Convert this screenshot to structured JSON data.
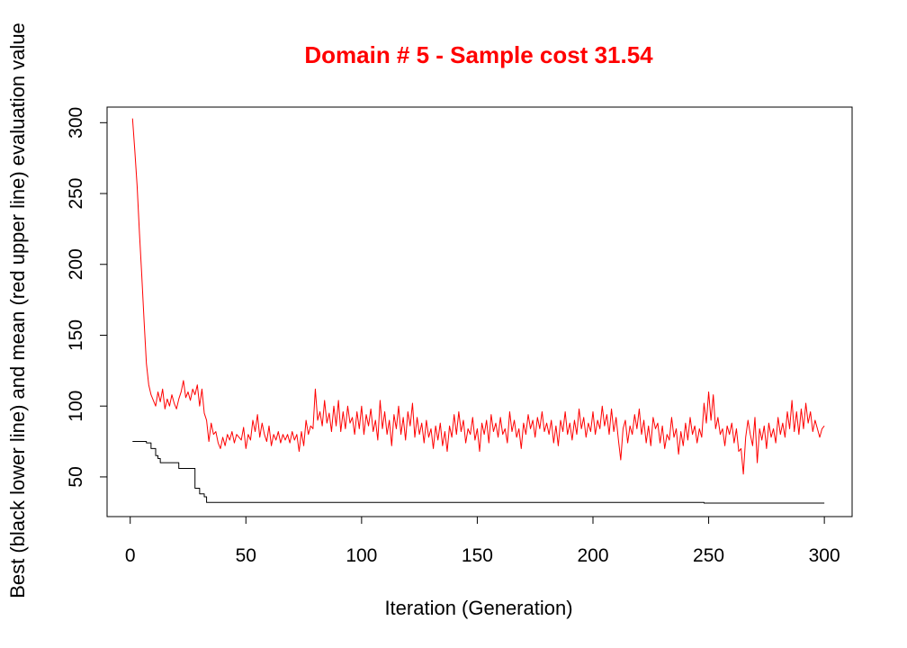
{
  "chart_data": {
    "type": "line",
    "title": "Domain # 5  - Sample cost 31.54",
    "xlabel": "Iteration (Generation)",
    "ylabel": "Best (black lower line) and mean (red upper line) evaluation value",
    "xlim": [
      -10,
      312
    ],
    "ylim": [
      22,
      311
    ],
    "x_ticks": [
      0,
      50,
      100,
      150,
      200,
      250,
      300
    ],
    "y_ticks": [
      50,
      100,
      150,
      200,
      250,
      300
    ],
    "grid": false,
    "legend": "none",
    "colors": {
      "title": "#ff0000",
      "best": "#000000",
      "mean": "#ff0000"
    },
    "series": [
      {
        "key": "best",
        "color": "#000000",
        "points": [
          [
            1,
            75
          ],
          [
            5,
            75
          ],
          [
            7,
            74
          ],
          [
            9,
            70
          ],
          [
            11,
            65
          ],
          [
            12,
            63
          ],
          [
            13,
            60
          ],
          [
            20,
            60
          ],
          [
            21,
            56
          ],
          [
            27,
            56
          ],
          [
            28,
            42
          ],
          [
            30,
            38
          ],
          [
            32,
            36
          ],
          [
            33,
            32
          ],
          [
            247,
            32
          ],
          [
            248,
            31.5
          ],
          [
            300,
            31.5
          ]
        ]
      },
      {
        "key": "mean",
        "color": "#ff0000",
        "points": [
          [
            1,
            303
          ],
          [
            2,
            280
          ],
          [
            3,
            255
          ],
          [
            4,
            222
          ],
          [
            5,
            192
          ],
          [
            6,
            160
          ],
          [
            7,
            130
          ],
          [
            8,
            115
          ],
          [
            9,
            108
          ],
          [
            10,
            104
          ],
          [
            11,
            100
          ],
          [
            12,
            110
          ],
          [
            13,
            103
          ],
          [
            14,
            112
          ],
          [
            15,
            98
          ],
          [
            16,
            105
          ],
          [
            17,
            100
          ],
          [
            18,
            108
          ],
          [
            19,
            102
          ],
          [
            20,
            98
          ],
          [
            21,
            105
          ],
          [
            22,
            110
          ],
          [
            23,
            118
          ],
          [
            24,
            106
          ],
          [
            25,
            110
          ],
          [
            26,
            104
          ],
          [
            27,
            112
          ],
          [
            28,
            108
          ],
          [
            29,
            115
          ],
          [
            30,
            100
          ],
          [
            31,
            112
          ],
          [
            32,
            95
          ],
          [
            33,
            90
          ],
          [
            34,
            75
          ],
          [
            35,
            88
          ],
          [
            36,
            80
          ],
          [
            37,
            82
          ],
          [
            38,
            74
          ],
          [
            39,
            70
          ],
          [
            40,
            78
          ],
          [
            41,
            72
          ],
          [
            42,
            80
          ],
          [
            43,
            76
          ],
          [
            44,
            82
          ],
          [
            45,
            74
          ],
          [
            46,
            80
          ],
          [
            47,
            78
          ],
          [
            48,
            76
          ],
          [
            49,
            85
          ],
          [
            50,
            70
          ],
          [
            51,
            80
          ],
          [
            52,
            76
          ],
          [
            53,
            90
          ],
          [
            54,
            82
          ],
          [
            55,
            94
          ],
          [
            56,
            78
          ],
          [
            57,
            88
          ],
          [
            58,
            80
          ],
          [
            59,
            75
          ],
          [
            60,
            86
          ],
          [
            61,
            72
          ],
          [
            62,
            80
          ],
          [
            63,
            76
          ],
          [
            64,
            82
          ],
          [
            65,
            74
          ],
          [
            66,
            80
          ],
          [
            67,
            76
          ],
          [
            68,
            80
          ],
          [
            69,
            74
          ],
          [
            70,
            82
          ],
          [
            71,
            76
          ],
          [
            72,
            80
          ],
          [
            73,
            68
          ],
          [
            74,
            82
          ],
          [
            75,
            72
          ],
          [
            76,
            90
          ],
          [
            77,
            80
          ],
          [
            78,
            86
          ],
          [
            79,
            84
          ],
          [
            80,
            112
          ],
          [
            81,
            90
          ],
          [
            82,
            96
          ],
          [
            83,
            86
          ],
          [
            84,
            104
          ],
          [
            85,
            88
          ],
          [
            86,
            95
          ],
          [
            87,
            82
          ],
          [
            88,
            100
          ],
          [
            89,
            86
          ],
          [
            90,
            104
          ],
          [
            91,
            82
          ],
          [
            92,
            96
          ],
          [
            93,
            84
          ],
          [
            94,
            100
          ],
          [
            95,
            88
          ],
          [
            96,
            92
          ],
          [
            97,
            80
          ],
          [
            98,
            96
          ],
          [
            99,
            84
          ],
          [
            100,
            100
          ],
          [
            101,
            80
          ],
          [
            102,
            94
          ],
          [
            103,
            86
          ],
          [
            104,
            98
          ],
          [
            105,
            82
          ],
          [
            106,
            90
          ],
          [
            107,
            76
          ],
          [
            108,
            104
          ],
          [
            109,
            84
          ],
          [
            110,
            96
          ],
          [
            111,
            80
          ],
          [
            112,
            90
          ],
          [
            113,
            72
          ],
          [
            114,
            94
          ],
          [
            115,
            84
          ],
          [
            116,
            100
          ],
          [
            117,
            80
          ],
          [
            118,
            92
          ],
          [
            119,
            76
          ],
          [
            120,
            96
          ],
          [
            121,
            86
          ],
          [
            122,
            102
          ],
          [
            123,
            78
          ],
          [
            124,
            92
          ],
          [
            125,
            80
          ],
          [
            126,
            88
          ],
          [
            127,
            74
          ],
          [
            128,
            90
          ],
          [
            129,
            78
          ],
          [
            130,
            84
          ],
          [
            131,
            70
          ],
          [
            132,
            86
          ],
          [
            133,
            76
          ],
          [
            134,
            88
          ],
          [
            135,
            72
          ],
          [
            136,
            82
          ],
          [
            137,
            68
          ],
          [
            138,
            86
          ],
          [
            139,
            78
          ],
          [
            140,
            94
          ],
          [
            141,
            80
          ],
          [
            142,
            96
          ],
          [
            143,
            82
          ],
          [
            144,
            90
          ],
          [
            145,
            74
          ],
          [
            146,
            84
          ],
          [
            147,
            80
          ],
          [
            148,
            92
          ],
          [
            149,
            76
          ],
          [
            150,
            84
          ],
          [
            151,
            68
          ],
          [
            152,
            88
          ],
          [
            153,
            80
          ],
          [
            154,
            90
          ],
          [
            155,
            74
          ],
          [
            156,
            94
          ],
          [
            157,
            82
          ],
          [
            158,
            88
          ],
          [
            159,
            78
          ],
          [
            160,
            92
          ],
          [
            161,
            80
          ],
          [
            162,
            84
          ],
          [
            163,
            74
          ],
          [
            164,
            96
          ],
          [
            165,
            82
          ],
          [
            166,
            90
          ],
          [
            167,
            78
          ],
          [
            168,
            84
          ],
          [
            169,
            70
          ],
          [
            170,
            88
          ],
          [
            171,
            80
          ],
          [
            172,
            94
          ],
          [
            173,
            84
          ],
          [
            174,
            90
          ],
          [
            175,
            78
          ],
          [
            176,
            92
          ],
          [
            177,
            84
          ],
          [
            178,
            96
          ],
          [
            179,
            82
          ],
          [
            180,
            88
          ],
          [
            181,
            80
          ],
          [
            182,
            90
          ],
          [
            183,
            74
          ],
          [
            184,
            86
          ],
          [
            185,
            72
          ],
          [
            186,
            90
          ],
          [
            187,
            82
          ],
          [
            188,
            96
          ],
          [
            189,
            80
          ],
          [
            190,
            88
          ],
          [
            191,
            76
          ],
          [
            192,
            90
          ],
          [
            193,
            80
          ],
          [
            194,
            98
          ],
          [
            195,
            84
          ],
          [
            196,
            92
          ],
          [
            197,
            78
          ],
          [
            198,
            88
          ],
          [
            199,
            82
          ],
          [
            200,
            96
          ],
          [
            201,
            80
          ],
          [
            202,
            90
          ],
          [
            203,
            84
          ],
          [
            204,
            100
          ],
          [
            205,
            86
          ],
          [
            206,
            94
          ],
          [
            207,
            80
          ],
          [
            208,
            98
          ],
          [
            209,
            82
          ],
          [
            210,
            92
          ],
          [
            211,
            76
          ],
          [
            212,
            62
          ],
          [
            213,
            84
          ],
          [
            214,
            90
          ],
          [
            215,
            74
          ],
          [
            216,
            86
          ],
          [
            217,
            80
          ],
          [
            218,
            94
          ],
          [
            219,
            84
          ],
          [
            220,
            98
          ],
          [
            221,
            80
          ],
          [
            222,
            90
          ],
          [
            223,
            74
          ],
          [
            224,
            86
          ],
          [
            225,
            72
          ],
          [
            226,
            92
          ],
          [
            227,
            84
          ],
          [
            228,
            88
          ],
          [
            229,
            74
          ],
          [
            230,
            86
          ],
          [
            231,
            70
          ],
          [
            232,
            80
          ],
          [
            233,
            76
          ],
          [
            234,
            92
          ],
          [
            235,
            78
          ],
          [
            236,
            84
          ],
          [
            237,
            66
          ],
          [
            238,
            82
          ],
          [
            239,
            72
          ],
          [
            240,
            88
          ],
          [
            241,
            76
          ],
          [
            242,
            92
          ],
          [
            243,
            80
          ],
          [
            244,
            86
          ],
          [
            245,
            74
          ],
          [
            246,
            84
          ],
          [
            247,
            78
          ],
          [
            248,
            102
          ],
          [
            249,
            88
          ],
          [
            250,
            110
          ],
          [
            251,
            90
          ],
          [
            252,
            108
          ],
          [
            253,
            84
          ],
          [
            254,
            92
          ],
          [
            255,
            80
          ],
          [
            256,
            84
          ],
          [
            257,
            72
          ],
          [
            258,
            86
          ],
          [
            259,
            80
          ],
          [
            260,
            88
          ],
          [
            261,
            74
          ],
          [
            262,
            84
          ],
          [
            263,
            68
          ],
          [
            264,
            70
          ],
          [
            265,
            52
          ],
          [
            266,
            78
          ],
          [
            267,
            90
          ],
          [
            268,
            80
          ],
          [
            269,
            72
          ],
          [
            270,
            92
          ],
          [
            271,
            60
          ],
          [
            272,
            84
          ],
          [
            273,
            76
          ],
          [
            274,
            86
          ],
          [
            275,
            70
          ],
          [
            276,
            88
          ],
          [
            277,
            78
          ],
          [
            278,
            84
          ],
          [
            279,
            74
          ],
          [
            280,
            92
          ],
          [
            281,
            80
          ],
          [
            282,
            88
          ],
          [
            283,
            78
          ],
          [
            284,
            96
          ],
          [
            285,
            84
          ],
          [
            286,
            104
          ],
          [
            287,
            82
          ],
          [
            288,
            96
          ],
          [
            289,
            80
          ],
          [
            290,
            98
          ],
          [
            291,
            84
          ],
          [
            292,
            102
          ],
          [
            293,
            88
          ],
          [
            294,
            96
          ],
          [
            295,
            82
          ],
          [
            296,
            90
          ],
          [
            297,
            84
          ],
          [
            298,
            78
          ],
          [
            299,
            84
          ],
          [
            300,
            86
          ]
        ]
      }
    ]
  }
}
